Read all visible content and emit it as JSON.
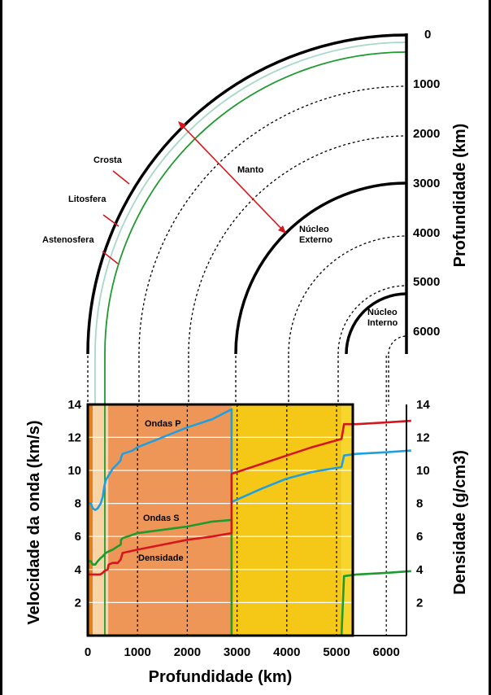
{
  "labels": {
    "crosta": "Crosta",
    "litosfera": "Litosfera",
    "astenosfera": "Astenosfera",
    "manto": "Manto",
    "nucleo_externo_1": "Núcleo",
    "nucleo_externo_2": "Externo",
    "nucleo_interno_1": "Núcleo",
    "nucleo_interno_2": "Interno",
    "ondas_p": "Ondas P",
    "ondas_s": "Ondas S",
    "densidade": "Densidade"
  },
  "top_axis": {
    "title": "Profundidade (km)",
    "ticks": [
      "0",
      "1000",
      "2000",
      "3000",
      "4000",
      "5000",
      "6000"
    ]
  },
  "colors": {
    "crust": "#e6801c",
    "upper_mantle": "#f7d3a6",
    "lower_mantle": "#ee9658",
    "outer_core": "#f5c717",
    "inner_core": "#f7d52a",
    "p_wave": "#1f9fe0",
    "s_wave": "#1e9a2e",
    "density": "#d6161d",
    "arrow": "#d6161d",
    "green_line": "#1e9a2e",
    "light_line": "#a8d8c8"
  },
  "chart_data": {
    "type": "line",
    "xlabel": "Profundidade (km)",
    "ylabel": "Velocidade da onda (km/s)",
    "y2label": "Densidade (g/cm3)",
    "xlim": [
      0,
      6500
    ],
    "ylim": [
      0,
      14
    ],
    "y2lim": [
      0,
      14
    ],
    "xticks": [
      "0",
      "1000",
      "2000",
      "3000",
      "4000",
      "5000",
      "6000"
    ],
    "yticks": [
      "2",
      "4",
      "6",
      "8",
      "10",
      "12",
      "14"
    ],
    "y2ticks": [
      "2",
      "4",
      "6",
      "8",
      "10",
      "12",
      "14"
    ],
    "grid": true,
    "series": [
      {
        "name": "Ondas P",
        "x": [
          0,
          60,
          100,
          150,
          200,
          260,
          300,
          330,
          360,
          420,
          500,
          600,
          660,
          670,
          700,
          800,
          900,
          1000,
          1500,
          2000,
          2500,
          2890,
          2891,
          2900,
          3500,
          4000,
          4500,
          5100,
          5150,
          5400,
          6000,
          6500
        ],
        "values": [
          8.0,
          8.0,
          7.7,
          7.6,
          7.7,
          8.0,
          8.4,
          9.0,
          9.4,
          9.7,
          10.1,
          10.4,
          10.6,
          10.8,
          11.0,
          11.1,
          11.2,
          11.4,
          12.0,
          12.6,
          13.1,
          13.7,
          8.0,
          8.1,
          8.9,
          9.5,
          9.9,
          10.2,
          10.9,
          11.0,
          11.1,
          11.2
        ]
      },
      {
        "name": "Ondas S",
        "x": [
          0,
          60,
          100,
          150,
          200,
          260,
          300,
          330,
          360,
          420,
          500,
          600,
          660,
          670,
          700,
          800,
          1000,
          1500,
          2000,
          2500,
          2890,
          2891,
          3000,
          5100,
          5150,
          5400,
          6000,
          6500
        ],
        "values": [
          4.5,
          4.5,
          4.3,
          4.3,
          4.5,
          4.7,
          4.8,
          4.9,
          5.0,
          5.1,
          5.2,
          5.4,
          5.5,
          5.8,
          5.9,
          6.0,
          6.2,
          6.4,
          6.6,
          6.9,
          7.0,
          0,
          0,
          0,
          3.6,
          3.7,
          3.8,
          3.9
        ]
      },
      {
        "name": "Densidade",
        "x": [
          0,
          250,
          300,
          330,
          400,
          420,
          500,
          600,
          660,
          700,
          1000,
          1500,
          2000,
          2500,
          2890,
          2891,
          3000,
          3500,
          4000,
          4500,
          5100,
          5150,
          5400,
          6000,
          6500
        ],
        "values": [
          3.7,
          3.7,
          3.8,
          3.9,
          4.0,
          4.3,
          4.4,
          4.4,
          4.6,
          5.0,
          5.2,
          5.5,
          5.8,
          6.0,
          6.2,
          9.8,
          9.9,
          10.4,
          10.9,
          11.4,
          11.9,
          12.8,
          12.8,
          12.9,
          13.0
        ]
      }
    ]
  }
}
